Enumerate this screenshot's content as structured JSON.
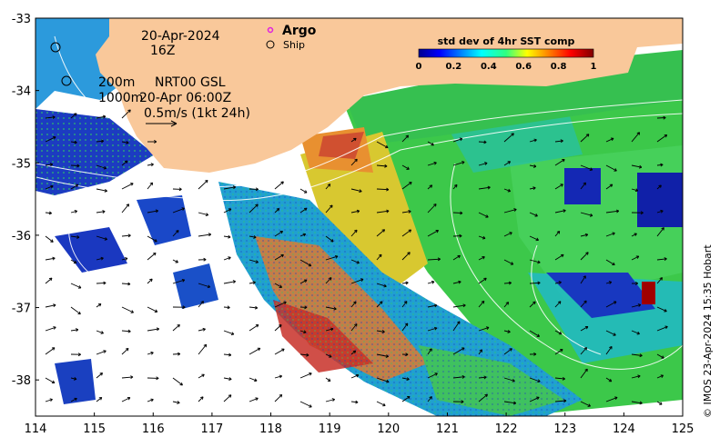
{
  "map": {
    "date_label": "20-Apr-2024",
    "hour_label": "16Z",
    "legend": {
      "argo_label": "Argo",
      "ship_label": "Ship",
      "argo_color": "#e020e0"
    },
    "isobath_label": "200m",
    "isobath_label_2": "1000m",
    "current_product": "NRT00 GSL",
    "current_time": "20-Apr 06:00Z",
    "arrow_scale_label": "0.5m/s (1kt 24h)",
    "credit": "© IMOS 23-Apr-2024 15:35 Hobart",
    "land_color": "#f9c89a",
    "lon_ticks": [
      "114",
      "115",
      "116",
      "117",
      "118",
      "119",
      "120",
      "121",
      "122",
      "123",
      "124",
      "125"
    ],
    "lat_ticks": [
      "-33",
      "-34",
      "-35",
      "-36",
      "-37",
      "-38"
    ],
    "lon_range": [
      114,
      125
    ],
    "lat_range": [
      -38.5,
      -33
    ]
  },
  "colorbar": {
    "title": "std dev of 4hr SST comp",
    "ticks": [
      "0",
      "0.2",
      "0.4",
      "0.6",
      "0.8",
      "1"
    ],
    "range": [
      0,
      1
    ],
    "colormap": "jet"
  }
}
